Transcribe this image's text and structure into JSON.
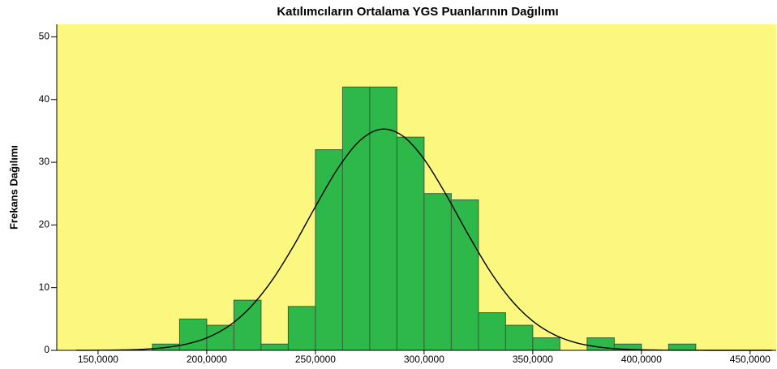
{
  "chart_data": {
    "type": "histogram",
    "title": "Katılımcıların Ortalama YGS Puanlarının Dağılımı",
    "y_label": "Frekans Dağılımı",
    "bins": [
      175000,
      187500,
      200000,
      212500,
      225000,
      237500,
      250000,
      262500,
      275000,
      287500,
      300000,
      312500,
      325000,
      337500,
      350000,
      362500,
      375000,
      387500,
      400000,
      412500,
      425000
    ],
    "values": [
      1,
      5,
      4,
      8,
      1,
      7,
      32,
      42,
      42,
      34,
      25,
      24,
      6,
      4,
      2,
      0,
      2,
      1,
      0,
      1
    ],
    "color": "#2fb84a",
    "edge_color": "#35603a",
    "background": "#fbf77f",
    "curve": {
      "color": "#000000",
      "x": [
        140000,
        150000,
        160000,
        170000,
        180000,
        190000,
        200000,
        210000,
        220000,
        230000,
        240000,
        250000,
        260000,
        270000,
        280000,
        290000,
        300000,
        310000,
        320000,
        330000,
        340000,
        350000,
        360000,
        370000,
        380000,
        390000,
        400000,
        410000,
        420000,
        430000,
        440000,
        450000,
        460000
      ],
      "values": [
        0.01,
        0.02,
        0.06,
        0.16,
        0.41,
        0.94,
        1.98,
        3.84,
        6.84,
        11.15,
        16.69,
        22.92,
        28.85,
        33.31,
        35.26,
        34.24,
        30.49,
        24.9,
        18.66,
        12.81,
        8.07,
        4.66,
        2.47,
        1.2,
        0.54,
        0.22,
        0.08,
        0.03,
        0.01,
        0,
        0,
        0,
        0
      ]
    },
    "xlim": [
      131000,
      462000
    ],
    "xticks": [
      {
        "value": 150000,
        "label": "150,0000"
      },
      {
        "value": 200000,
        "label": "200,0000"
      },
      {
        "value": 250000,
        "label": "250,0000"
      },
      {
        "value": 300000,
        "label": "300,0000"
      },
      {
        "value": 350000,
        "label": "350,0000"
      },
      {
        "value": 400000,
        "label": "400,0000"
      },
      {
        "value": 450000,
        "label": "450,0000"
      }
    ],
    "ylim": [
      0,
      52
    ],
    "yticks": [
      0,
      10,
      20,
      30,
      40,
      50
    ]
  }
}
